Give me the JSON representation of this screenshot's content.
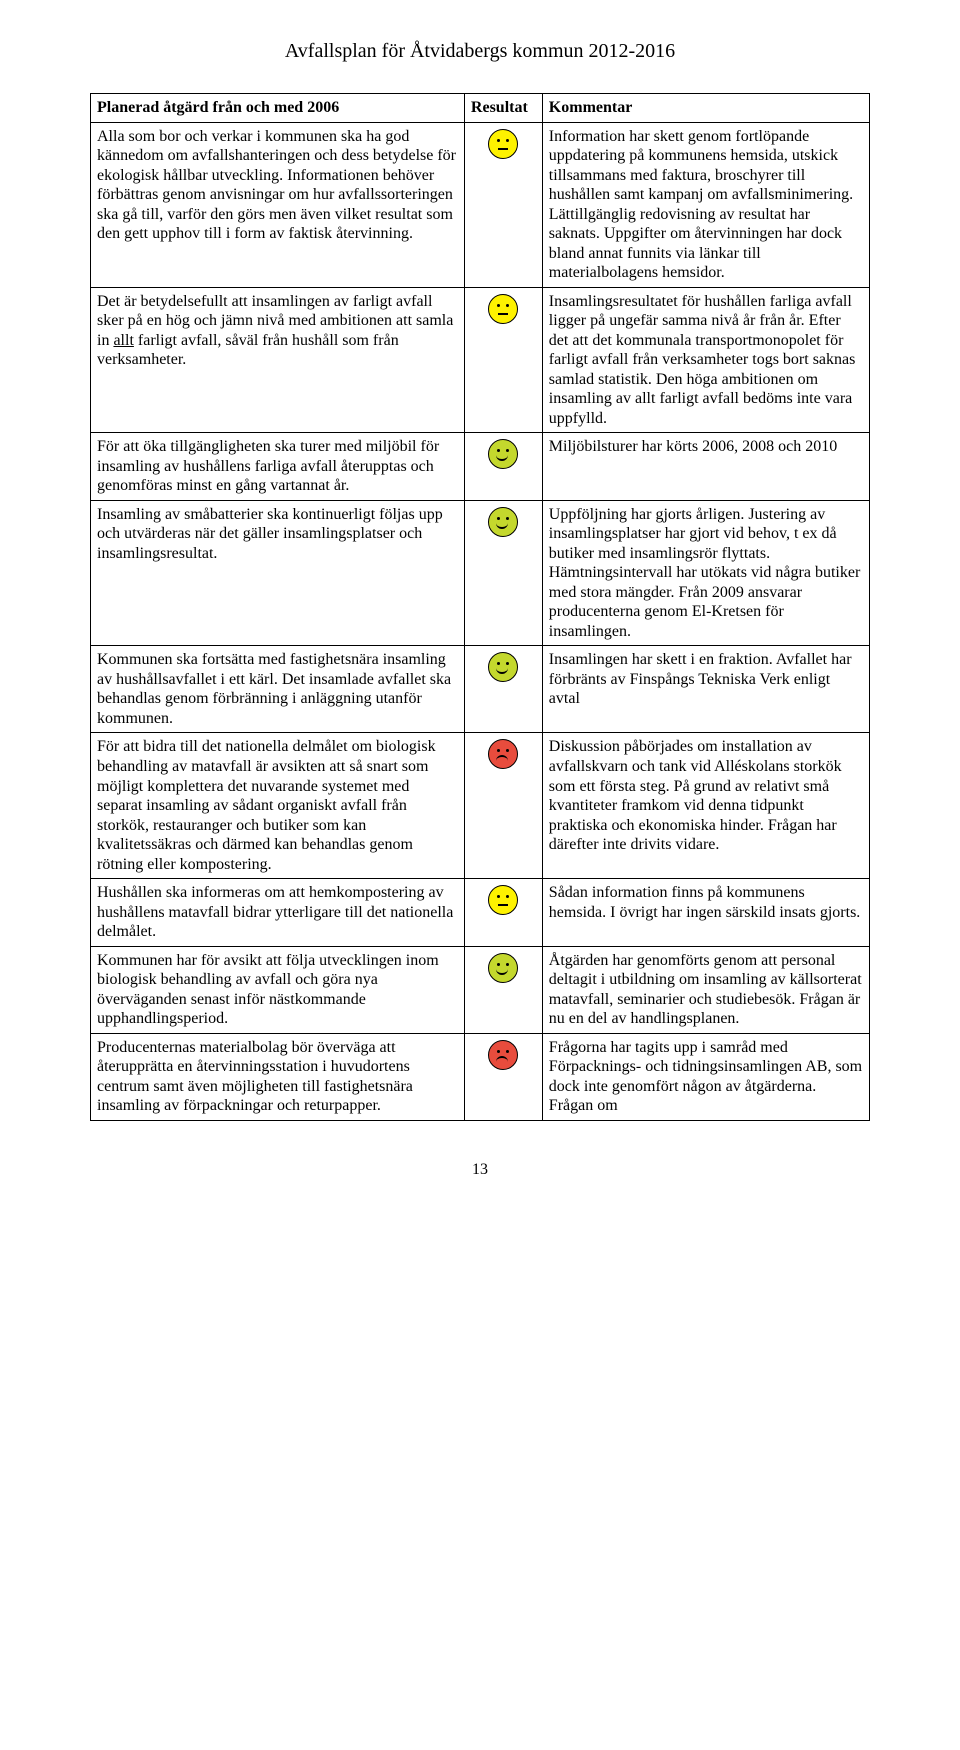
{
  "document": {
    "title": "Avfallsplan för Åtvidabergs kommun 2012-2016",
    "page_number": "13"
  },
  "table": {
    "headers": {
      "action": "Planerad åtgärd från och med 2006",
      "result": "Resultat",
      "comment": "Kommentar"
    },
    "rows": [
      {
        "action": "Alla som bor och verkar i kommunen ska ha god kännedom om avfallshanteringen och dess betydelse för ekologisk hållbar utveckling. Informationen behöver förbättras genom anvisningar om hur avfallssorteringen ska gå till, varför den görs men även vilket resultat som den gett upphov till i form av faktisk återvinning.",
        "face": "neutral",
        "comment": "Information har skett genom fortlöpande uppdatering på kommunens hemsida, utskick tillsammans med faktura, broschyrer till hushållen samt kampanj om avfallsminimering. Lättillgänglig redovisning av resultat har saknats. Uppgifter om återvinningen har dock bland annat funnits via länkar till materialbolagens hemsidor."
      },
      {
        "action_pre": "Det är betydelsefullt att insamlingen av farligt avfall sker på en hög och jämn nivå med ambitionen att samla in ",
        "action_underline": "allt",
        "action_post": " farligt avfall, såväl från hushåll som från verksamheter.",
        "face": "neutral",
        "comment": "Insamlingsresultatet för hushållen farliga avfall ligger på ungefär samma nivå år från år. Efter det att det kommunala transportmonopolet för farligt avfall från verksamheter togs bort saknas samlad statistik. Den höga ambitionen om insamling av allt farligt avfall bedöms inte vara uppfylld."
      },
      {
        "action": "För att öka tillgängligheten ska turer med miljöbil för insamling av hushållens farliga avfall återupptas och genomföras minst en gång vartannat år.",
        "face": "happy",
        "comment": "Miljöbilsturer har körts 2006, 2008 och 2010"
      },
      {
        "action": "Insamling av småbatterier ska kontinuerligt följas upp och utvärderas när det gäller insamlingsplatser och insamlingsresultat.",
        "face": "happy",
        "comment": "Uppföljning har gjorts årligen. Justering av insamlingsplatser har gjort vid behov, t ex då butiker med insamlingsrör flyttats. Hämtningsintervall har utökats vid några butiker med stora mängder. Från 2009 ansvarar producenterna genom El-Kretsen för insamlingen."
      },
      {
        "action": "Kommunen ska fortsätta med fastighetsnära insamling av hushållsavfallet i ett kärl. Det insamlade avfallet ska behandlas genom förbränning i anläggning utanför kommunen.",
        "face": "happy",
        "comment": "Insamlingen har skett i en fraktion. Avfallet har förbränts av Finspångs Tekniska Verk enligt avtal"
      },
      {
        "action": "För att bidra till det nationella delmålet om biologisk behandling av matavfall är avsikten att så snart som möjligt komplettera det nuvarande systemet med separat insamling av sådant organiskt avfall från storkök, restauranger och butiker som kan kvalitetssäkras och därmed kan behandlas genom rötning eller kompostering.",
        "face": "sad",
        "comment": "Diskussion påbörjades om installation av avfallskvarn och tank vid Alléskolans storkök som ett första steg. På grund av relativt små kvantiteter framkom vid denna tidpunkt praktiska och ekonomiska hinder. Frågan har därefter inte drivits vidare."
      },
      {
        "action": "Hushållen ska informeras om att hemkompostering av hushållens matavfall bidrar ytterligare till det nationella delmålet.",
        "face": "neutral",
        "comment": "Sådan information finns på kommunens hemsida. I övrigt har ingen särskild insats gjorts."
      },
      {
        "action": "Kommunen har för avsikt att följa utvecklingen inom biologisk behandling av avfall och göra nya överväganden senast inför nästkommande upphandlingsperiod.",
        "face": "happy",
        "comment": "Åtgärden har genomförts genom att personal deltagit i utbildning om insamling av källsorterat matavfall, seminarier och studiebesök. Frågan är nu en del av handlingsplanen."
      },
      {
        "action": "Producenternas materialbolag bör överväga att återupprätta en återvinningsstation i huvudortens centrum samt även möjligheten till fastighetsnära insamling av förpackningar och returpapper.",
        "face": "sad",
        "comment": "Frågorna har tagits upp i samråd med Förpacknings- och tidningsinsamlingen AB, som dock inte genomfört någon av åtgärderna. Frågan om"
      }
    ]
  },
  "colors": {
    "face_yellow": "#fef200",
    "face_green": "#c4d82d",
    "face_red": "#e84c3d",
    "border": "#000000",
    "text": "#000000",
    "background": "#ffffff"
  }
}
